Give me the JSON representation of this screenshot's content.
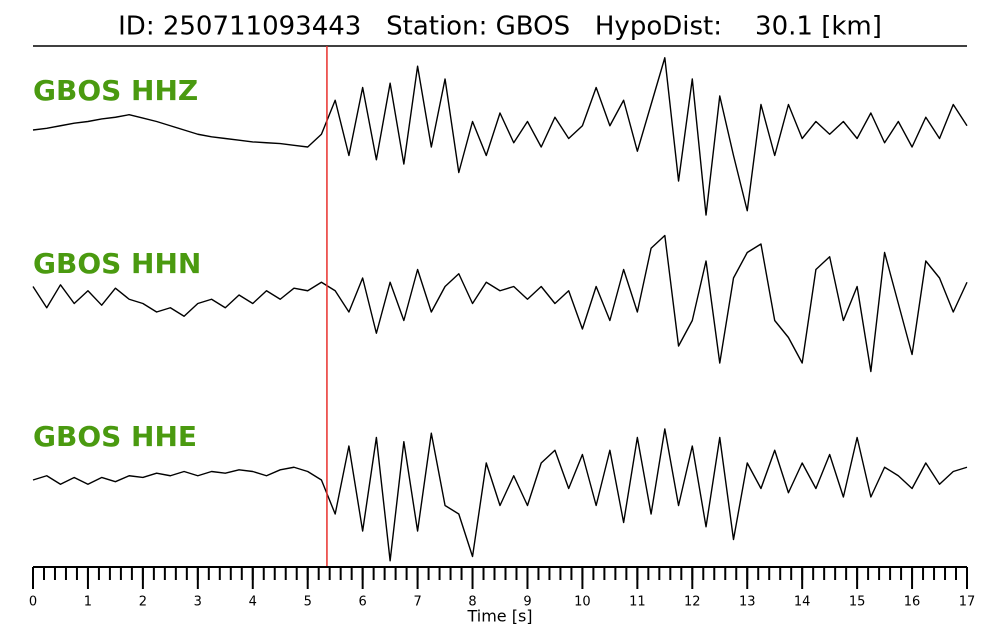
{
  "chart_data": {
    "type": "line",
    "title": "ID: 250711093443   Station: GBOS   HypoDist:    30.1 [km]",
    "xlabel": "Time [s]",
    "xlim": [
      0,
      17
    ],
    "xticks": [
      0,
      1,
      2,
      3,
      4,
      5,
      6,
      7,
      8,
      9,
      10,
      11,
      12,
      13,
      14,
      15,
      16,
      17
    ],
    "xminor_step": 0.2,
    "ylim": [
      -1,
      1
    ],
    "pick_x": 5.35,
    "pick_color": "#e8302c",
    "label_color": "#4a9a10",
    "x": [
      0,
      0.25,
      0.5,
      0.75,
      1,
      1.25,
      1.5,
      1.75,
      2,
      2.25,
      2.5,
      2.75,
      3,
      3.25,
      3.5,
      3.75,
      4,
      4.25,
      4.5,
      4.75,
      5,
      5.25,
      5.5,
      5.75,
      6,
      6.25,
      6.5,
      6.75,
      7,
      7.25,
      7.5,
      7.75,
      8,
      8.25,
      8.5,
      8.75,
      9,
      9.25,
      9.5,
      9.75,
      10,
      10.25,
      10.5,
      10.75,
      11,
      11.25,
      11.5,
      11.75,
      12,
      12.25,
      12.5,
      12.75,
      13,
      13.25,
      13.5,
      13.75,
      14,
      14.25,
      14.5,
      14.75,
      15,
      15.25,
      15.5,
      15.75,
      16,
      16.25,
      16.5,
      16.75,
      17
    ],
    "series": [
      {
        "name": "GBOS HHZ",
        "color": "#000000",
        "values": [
          0,
          0.02,
          0.05,
          0.08,
          0.1,
          0.13,
          0.15,
          0.18,
          0.14,
          0.1,
          0.05,
          0,
          -0.05,
          -0.08,
          -0.1,
          -0.12,
          -0.14,
          -0.15,
          -0.16,
          -0.18,
          -0.2,
          -0.05,
          0.35,
          -0.3,
          0.5,
          -0.35,
          0.55,
          -0.4,
          0.75,
          -0.2,
          0.6,
          -0.5,
          0.1,
          -0.3,
          0.2,
          -0.15,
          0.1,
          -0.2,
          0.15,
          -0.1,
          0.05,
          0.5,
          0.05,
          0.35,
          -0.25,
          0.3,
          0.85,
          -0.6,
          0.6,
          -1.0,
          0.4,
          -0.3,
          -0.95,
          0.3,
          -0.3,
          0.3,
          -0.1,
          0.1,
          -0.05,
          0.1,
          -0.1,
          0.2,
          -0.15,
          0.1,
          -0.2,
          0.15,
          -0.1,
          0.3,
          0.05
        ]
      },
      {
        "name": "GBOS HHN",
        "color": "#000000",
        "values": [
          0.1,
          -0.15,
          0.12,
          -0.1,
          0.05,
          -0.12,
          0.08,
          -0.05,
          -0.1,
          -0.2,
          -0.15,
          -0.25,
          -0.1,
          -0.05,
          -0.15,
          0,
          -0.1,
          0.05,
          -0.05,
          0.08,
          0.05,
          0.15,
          0.05,
          -0.2,
          0.2,
          -0.45,
          0.15,
          -0.3,
          0.3,
          -0.2,
          0.1,
          0.25,
          -0.1,
          0.15,
          0.05,
          0.1,
          -0.05,
          0.1,
          -0.1,
          0.05,
          -0.4,
          0.1,
          -0.3,
          0.3,
          -0.2,
          0.55,
          0.7,
          -0.6,
          -0.3,
          0.4,
          -0.8,
          0.2,
          0.5,
          0.6,
          -0.3,
          -0.5,
          -0.8,
          0.3,
          0.45,
          -0.3,
          0.1,
          -0.9,
          0.5,
          -0.1,
          -0.7,
          0.4,
          0.2,
          -0.2,
          0.15
        ]
      },
      {
        "name": "GBOS HHE",
        "color": "#000000",
        "values": [
          0,
          0.05,
          -0.05,
          0.03,
          -0.05,
          0.03,
          -0.02,
          0.05,
          0.03,
          0.08,
          0.05,
          0.1,
          0.05,
          0.1,
          0.08,
          0.12,
          0.1,
          0.05,
          0.12,
          0.15,
          0.1,
          0,
          -0.4,
          0.4,
          -0.6,
          0.5,
          -0.95,
          0.45,
          -0.6,
          0.55,
          -0.3,
          -0.4,
          -0.9,
          0.2,
          -0.3,
          0.05,
          -0.3,
          0.2,
          0.35,
          -0.1,
          0.3,
          -0.3,
          0.35,
          -0.5,
          0.5,
          -0.4,
          0.6,
          -0.3,
          0.4,
          -0.55,
          0.5,
          -0.7,
          0.2,
          -0.1,
          0.35,
          -0.15,
          0.2,
          -0.1,
          0.3,
          -0.2,
          0.5,
          -0.2,
          0.15,
          0.05,
          -0.1,
          0.2,
          -0.05,
          0.1,
          0.15
        ]
      }
    ]
  }
}
